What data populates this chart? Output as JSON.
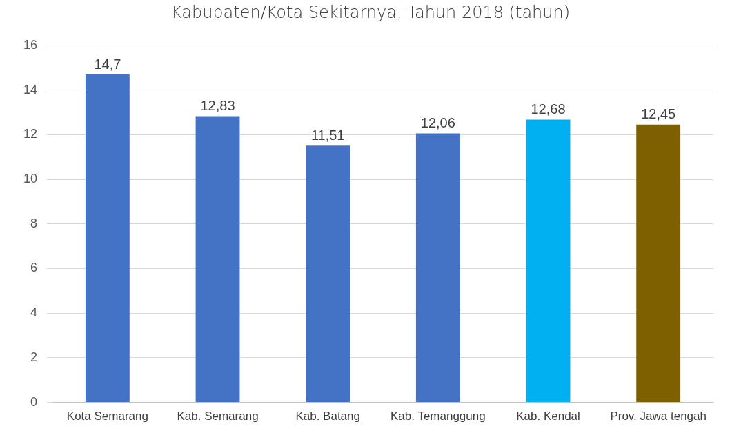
{
  "chart_data": {
    "type": "bar",
    "title": "Kabupaten/Kota Sekitarnya, Tahun 2018 (tahun)",
    "categories": [
      "Kota Semarang",
      "Kab. Semarang",
      "Kab. Batang",
      "Kab. Temanggung",
      "Kab. Kendal",
      "Prov. Jawa tengah"
    ],
    "values": [
      14.7,
      12.83,
      11.51,
      12.06,
      12.68,
      12.45
    ],
    "value_labels": [
      "14,7",
      "12,83",
      "11,51",
      "12,06",
      "12,68",
      "12,45"
    ],
    "colors": [
      "#4472c4",
      "#4472c4",
      "#4472c4",
      "#4472c4",
      "#00b0f0",
      "#7f6000"
    ],
    "ylim": [
      0,
      16
    ],
    "yticks": [
      0,
      2,
      4,
      6,
      8,
      10,
      12,
      14,
      16
    ],
    "grid": "y"
  }
}
